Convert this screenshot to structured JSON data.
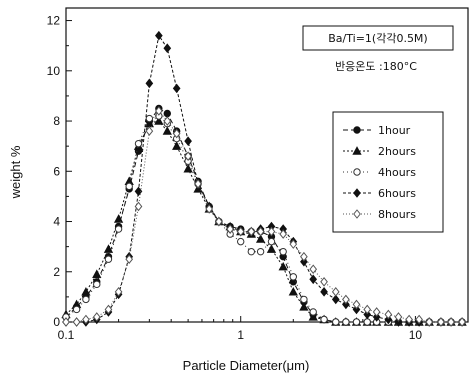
{
  "chart_data": {
    "type": "line",
    "title": "",
    "xlabel": "Particle Diameter(μm)",
    "ylabel": "weight %",
    "x_scale": "log",
    "xlim": [
      0.1,
      20
    ],
    "ylim": [
      0,
      12.5
    ],
    "x_ticks": [
      {
        "value": 0.1,
        "label": "0.1"
      },
      {
        "value": 1,
        "label": "1"
      },
      {
        "value": 10,
        "label": "10"
      }
    ],
    "y_ticks": [
      {
        "value": 0,
        "label": "0"
      },
      {
        "value": 2,
        "label": "2"
      },
      {
        "value": 4,
        "label": "4"
      },
      {
        "value": 6,
        "label": "6"
      },
      {
        "value": 8,
        "label": "8"
      },
      {
        "value": 10,
        "label": "10"
      },
      {
        "value": 12,
        "label": "12"
      }
    ],
    "grid": false,
    "legend_position": "right",
    "annotations": [
      {
        "lines": [
          "Ba/Ti=1(각각0.5M)",
          "반응온도 :180°C"
        ],
        "position": "top-right"
      }
    ],
    "x": [
      0.1,
      0.115,
      0.13,
      0.15,
      0.175,
      0.2,
      0.23,
      0.26,
      0.3,
      0.34,
      0.38,
      0.43,
      0.5,
      0.57,
      0.66,
      0.75,
      0.87,
      1.0,
      1.15,
      1.3,
      1.5,
      1.75,
      2.0,
      2.3,
      2.6,
      3.0,
      3.5,
      4.0,
      4.6,
      5.3,
      6.0,
      7.0,
      8.0,
      9.2,
      10.5,
      12.0,
      14.0,
      16.0,
      18.5
    ],
    "series": [
      {
        "name": "1hour",
        "marker": "circle-filled",
        "color": "#111111",
        "dash": "5,3",
        "values": [
          0.2,
          0.6,
          1.0,
          1.6,
          2.6,
          3.8,
          5.3,
          6.8,
          8.0,
          8.5,
          8.3,
          7.6,
          6.6,
          5.6,
          4.6,
          4.0,
          3.8,
          3.7,
          3.6,
          3.6,
          3.4,
          2.6,
          1.6,
          0.8,
          0.3,
          0.1,
          0.0,
          0.0,
          0.0,
          0.0,
          0.0,
          0.0,
          0.0,
          0.0,
          0.0,
          0.0,
          0.0,
          0.0,
          0.0
        ]
      },
      {
        "name": "2hours",
        "marker": "triangle-filled",
        "color": "#111111",
        "dash": "2,2",
        "values": [
          0.3,
          0.7,
          1.2,
          1.9,
          2.9,
          4.1,
          5.6,
          7.0,
          7.9,
          8.0,
          7.6,
          7.0,
          6.1,
          5.3,
          4.5,
          4.0,
          3.8,
          3.6,
          3.5,
          3.3,
          2.9,
          2.2,
          1.2,
          0.6,
          0.2,
          0.1,
          0.0,
          0.0,
          0.0,
          0.0,
          0.0,
          0.0,
          0.0,
          0.0,
          0.0,
          0.0,
          0.0,
          0.0,
          0.0
        ]
      },
      {
        "name": "4hours",
        "marker": "circle-open",
        "color": "#333333",
        "dash": "1,3",
        "values": [
          0.2,
          0.5,
          0.9,
          1.5,
          2.5,
          3.7,
          5.4,
          7.1,
          8.1,
          8.2,
          7.9,
          7.3,
          6.4,
          5.5,
          4.6,
          4.0,
          3.5,
          3.2,
          2.8,
          2.8,
          3.2,
          2.8,
          1.8,
          0.9,
          0.4,
          0.1,
          0.0,
          0.0,
          0.0,
          0.0,
          0.0,
          0.0,
          0.0,
          0.0,
          0.0,
          0.0,
          0.0,
          0.0,
          0.0
        ]
      },
      {
        "name": "6hours",
        "marker": "diamond-filled",
        "color": "#111111",
        "dash": "3,2",
        "values": [
          0.0,
          0.0,
          0.0,
          0.1,
          0.4,
          1.1,
          2.6,
          5.2,
          9.5,
          11.4,
          10.9,
          9.3,
          7.2,
          5.5,
          4.6,
          4.0,
          3.7,
          3.6,
          3.6,
          3.7,
          3.8,
          3.7,
          3.2,
          2.4,
          1.7,
          1.2,
          0.9,
          0.7,
          0.5,
          0.3,
          0.2,
          0.1,
          0.0,
          0.0,
          0.0,
          0.0,
          0.0,
          0.0,
          0.0
        ]
      },
      {
        "name": "8hours",
        "marker": "diamond-open",
        "color": "#555555",
        "dash": "1,2",
        "values": [
          0.0,
          0.0,
          0.1,
          0.2,
          0.5,
          1.2,
          2.5,
          4.6,
          7.6,
          8.4,
          8.0,
          7.5,
          6.6,
          5.5,
          4.5,
          4.0,
          3.7,
          3.6,
          3.6,
          3.6,
          3.6,
          3.5,
          3.1,
          2.6,
          2.1,
          1.6,
          1.2,
          0.9,
          0.7,
          0.5,
          0.4,
          0.3,
          0.2,
          0.1,
          0.1,
          0.0,
          0.0,
          0.0,
          0.0
        ]
      }
    ]
  }
}
